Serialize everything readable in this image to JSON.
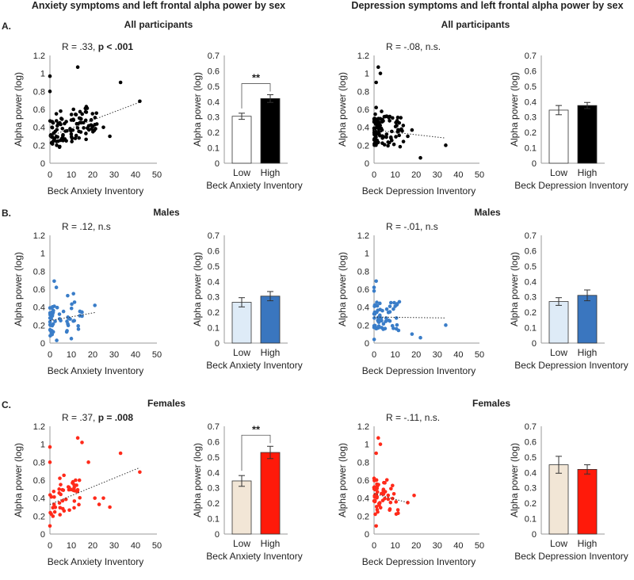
{
  "headings": {
    "left": "Anxiety symptoms and left frontal alpha power by sex",
    "right": "Depression symptoms and left frontal alpha power by sex"
  },
  "rows": [
    {
      "letter": "A.",
      "title": "All participants"
    },
    {
      "letter": "B.",
      "title": "Males"
    },
    {
      "letter": "C.",
      "title": "Females"
    }
  ],
  "colors": {
    "all": "#000000",
    "male_dot": "#3a7dc8",
    "male_low": "#deebf7",
    "male_high": "#3a76bf",
    "female_dot": "#ff2a1a",
    "female_low": "#f2e6d6",
    "female_high": "#ff1a0a",
    "white": "#ffffff"
  },
  "chart_data": [
    {
      "id": "scatter-anx-all",
      "type": "scatter",
      "xlabel": "Beck Anxiety Inventory",
      "ylabel": "Alpha power (log)",
      "x_ticks": [
        "0",
        "10",
        "20",
        "30",
        "40",
        "50"
      ],
      "y_ticks": [
        "0",
        "0.2",
        "0.4",
        "0.6",
        "0.8",
        "1",
        "1.2"
      ],
      "xlim": [
        0,
        50
      ],
      "ylim": [
        0,
        1.2
      ],
      "annotation": {
        "prefix": "R = .33, ",
        "bold": "p < .001"
      },
      "trend": {
        "x1": 0,
        "y1": 0.3,
        "x2": 42,
        "y2": 0.68
      },
      "color": "#000000",
      "seed": 1,
      "n": 95,
      "xmax": 22,
      "x": [
        13,
        33,
        42,
        17,
        11,
        5,
        3,
        25,
        28,
        21,
        20,
        0,
        0,
        1
      ],
      "y": [
        1.07,
        0.9,
        0.69,
        0.63,
        0.6,
        0.58,
        0.55,
        0.4,
        0.3,
        0.43,
        0.41,
        0.97,
        0.8,
        0.4
      ]
    },
    {
      "id": "bar-anx-all",
      "type": "bar",
      "categories": [
        "Low",
        "High"
      ],
      "values": [
        0.305,
        0.42
      ],
      "errors": [
        0.02,
        0.025
      ],
      "colors": [
        "#ffffff",
        "#000000"
      ],
      "xlabel": "Beck Anxiety Inventory",
      "ylabel": "Alpha power (log)",
      "y_ticks": [
        "0",
        "0.1",
        "0.2",
        "0.3",
        "0.4",
        "0.5",
        "0.6",
        "0.7"
      ],
      "ylim": [
        0,
        0.7
      ],
      "sig": "**"
    },
    {
      "id": "scatter-dep-all",
      "type": "scatter",
      "xlabel": "Beck Depression Inventory",
      "ylabel": "Alpha power (log)",
      "x_ticks": [
        "0",
        "10",
        "20",
        "30",
        "40",
        "50"
      ],
      "y_ticks": [
        "0",
        "0.2",
        "0.4",
        "0.6",
        "0.8",
        "1",
        "1.2"
      ],
      "xlim": [
        0,
        50
      ],
      "ylim": [
        0,
        1.2
      ],
      "annotation": {
        "prefix": "R = -.08, n.s.",
        "bold": ""
      },
      "trend": {
        "x1": 0,
        "y1": 0.37,
        "x2": 34,
        "y2": 0.28
      },
      "color": "#000000",
      "seed": 2,
      "n": 100,
      "xmax": 14,
      "x": [
        2,
        3,
        1,
        34,
        22,
        18,
        16,
        1
      ],
      "y": [
        1.07,
        1.0,
        0.9,
        0.2,
        0.06,
        0.37,
        0.3,
        0.62
      ],
      "dense_left": true
    },
    {
      "id": "bar-dep-all",
      "type": "bar",
      "categories": [
        "Low",
        "High"
      ],
      "values": [
        0.345,
        0.375
      ],
      "errors": [
        0.03,
        0.02
      ],
      "colors": [
        "#ffffff",
        "#000000"
      ],
      "xlabel": "Beck Depression Inventory",
      "ylabel": "Alpha power (log)",
      "y_ticks": [
        "0",
        "0.1",
        "0.2",
        "0.3",
        "0.4",
        "0.5",
        "0.6",
        "0.7"
      ],
      "ylim": [
        0,
        0.7
      ],
      "sig": ""
    },
    {
      "id": "scatter-anx-male",
      "type": "scatter",
      "xlabel": "Beck Anxiety Inventory",
      "ylabel": "Alpha power (log)",
      "x_ticks": [
        "0",
        "10",
        "20",
        "30",
        "40",
        "50"
      ],
      "y_ticks": [
        "0",
        "0.2",
        "0.4",
        "0.6",
        "0.8",
        "1",
        "1.2"
      ],
      "xlim": [
        0,
        50
      ],
      "ylim": [
        0,
        1.2
      ],
      "annotation": {
        "prefix": "R = .12, n.s",
        "bold": ""
      },
      "trend": {
        "x1": 0,
        "y1": 0.25,
        "x2": 21,
        "y2": 0.34
      },
      "color": "#3a7dc8",
      "seed": 3,
      "n": 55,
      "xmax": 15,
      "x": [
        21,
        15,
        2,
        3,
        11,
        10
      ],
      "y": [
        0.42,
        0.3,
        0.69,
        0.62,
        0.55,
        0.05
      ],
      "dense_left": true
    },
    {
      "id": "bar-anx-male",
      "type": "bar",
      "categories": [
        "Low",
        "High"
      ],
      "values": [
        0.265,
        0.305
      ],
      "errors": [
        0.03,
        0.03
      ],
      "colors": [
        "#deebf7",
        "#3a76bf"
      ],
      "xlabel": "Beck Anxiety Inventory",
      "ylabel": "Alpha power (log)",
      "y_ticks": [
        "0",
        "0.1",
        "0.2",
        "0.3",
        "0.4",
        "0.5",
        "0.6",
        "0.7"
      ],
      "ylim": [
        0,
        0.7
      ],
      "sig": ""
    },
    {
      "id": "scatter-dep-male",
      "type": "scatter",
      "xlabel": "Beck Depression Inventory",
      "ylabel": "Alpha power (log)",
      "x_ticks": [
        "0",
        "10",
        "20",
        "30",
        "40",
        "50"
      ],
      "y_ticks": [
        "0",
        "0.2",
        "0.4",
        "0.6",
        "0.8",
        "1",
        "1.2"
      ],
      "xlim": [
        0,
        50
      ],
      "ylim": [
        0,
        1.2
      ],
      "annotation": {
        "prefix": "R = -.01, n.s",
        "bold": ""
      },
      "trend": {
        "x1": 0,
        "y1": 0.29,
        "x2": 34,
        "y2": 0.28
      },
      "color": "#3a7dc8",
      "seed": 4,
      "n": 55,
      "xmax": 12,
      "x": [
        34,
        22,
        18,
        12,
        10,
        8,
        1,
        0,
        0
      ],
      "y": [
        0.2,
        0.06,
        0.1,
        0.46,
        0.41,
        0.45,
        0.69,
        0.62,
        0.58
      ],
      "dense_left": true
    },
    {
      "id": "bar-dep-male",
      "type": "bar",
      "categories": [
        "Low",
        "High"
      ],
      "values": [
        0.27,
        0.31
      ],
      "errors": [
        0.025,
        0.035
      ],
      "colors": [
        "#deebf7",
        "#3a76bf"
      ],
      "xlabel": "Beck Depression Inventory",
      "ylabel": "Alpha power (log)",
      "y_ticks": [
        "0",
        "0.1",
        "0.2",
        "0.3",
        "0.4",
        "0.5",
        "0.6",
        "0.7"
      ],
      "ylim": [
        0,
        0.7
      ],
      "sig": ""
    },
    {
      "id": "scatter-anx-female",
      "type": "scatter",
      "xlabel": "Beck Anxiety Inventory",
      "ylabel": "Alpha power (log)",
      "x_ticks": [
        "0",
        "10",
        "20",
        "30",
        "40",
        "50"
      ],
      "y_ticks": [
        "0",
        "0.2",
        "0.4",
        "0.6",
        "0.8",
        "1",
        "1.2"
      ],
      "xlim": [
        0,
        50
      ],
      "ylim": [
        0,
        1.2
      ],
      "annotation": {
        "prefix": "R = .37, ",
        "bold": "p = .008"
      },
      "trend": {
        "x1": 0,
        "y1": 0.33,
        "x2": 42,
        "y2": 0.74
      },
      "color": "#ff2a1a",
      "seed": 5,
      "n": 45,
      "xmax": 15,
      "x": [
        13,
        15,
        33,
        42,
        18,
        12,
        5,
        0,
        0,
        25,
        28,
        21,
        23,
        0
      ],
      "y": [
        1.07,
        1.02,
        0.9,
        0.69,
        0.8,
        0.6,
        0.55,
        0.97,
        0.8,
        0.4,
        0.3,
        0.4,
        0.33,
        0.09
      ]
    },
    {
      "id": "bar-anx-female",
      "type": "bar",
      "categories": [
        "Low",
        "High"
      ],
      "values": [
        0.345,
        0.53
      ],
      "errors": [
        0.035,
        0.04
      ],
      "colors": [
        "#f2e6d6",
        "#ff1a0a"
      ],
      "xlabel": "Beck Anxiety Inventory",
      "ylabel": "Alpha power (log)",
      "y_ticks": [
        "0",
        "0.1",
        "0.2",
        "0.3",
        "0.4",
        "0.5",
        "0.6",
        "0.7"
      ],
      "ylim": [
        0,
        0.7
      ],
      "sig": "**"
    },
    {
      "id": "scatter-dep-female",
      "type": "scatter",
      "xlabel": "Beck Depression Inventory",
      "ylabel": "Alpha power (log)",
      "x_ticks": [
        "0",
        "10",
        "20",
        "30",
        "40",
        "50"
      ],
      "y_ticks": [
        "0",
        "0.2",
        "0.4",
        "0.6",
        "0.8",
        "1",
        "1.2"
      ],
      "xlim": [
        0,
        50
      ],
      "ylim": [
        0,
        1.2
      ],
      "annotation": {
        "prefix": "R = -.11, n.s.",
        "bold": ""
      },
      "trend": {
        "x1": 0,
        "y1": 0.45,
        "x2": 16,
        "y2": 0.35
      },
      "color": "#ff2a1a",
      "seed": 6,
      "n": 55,
      "xmax": 12,
      "x": [
        2,
        3,
        1,
        19,
        16,
        0,
        1
      ],
      "y": [
        1.07,
        1.0,
        0.9,
        0.43,
        0.35,
        0.62,
        0.09
      ],
      "dense_left": true
    },
    {
      "id": "bar-dep-female",
      "type": "bar",
      "categories": [
        "Low",
        "High"
      ],
      "values": [
        0.45,
        0.42
      ],
      "errors": [
        0.055,
        0.03
      ],
      "colors": [
        "#f2e6d6",
        "#ff1a0a"
      ],
      "xlabel": "Beck Depression Inventory",
      "ylabel": "Alpha power (log)",
      "y_ticks": [
        "0",
        "0.1",
        "0.2",
        "0.3",
        "0.4",
        "0.5",
        "0.6",
        "0.7"
      ],
      "ylim": [
        0,
        0.7
      ],
      "sig": ""
    }
  ]
}
